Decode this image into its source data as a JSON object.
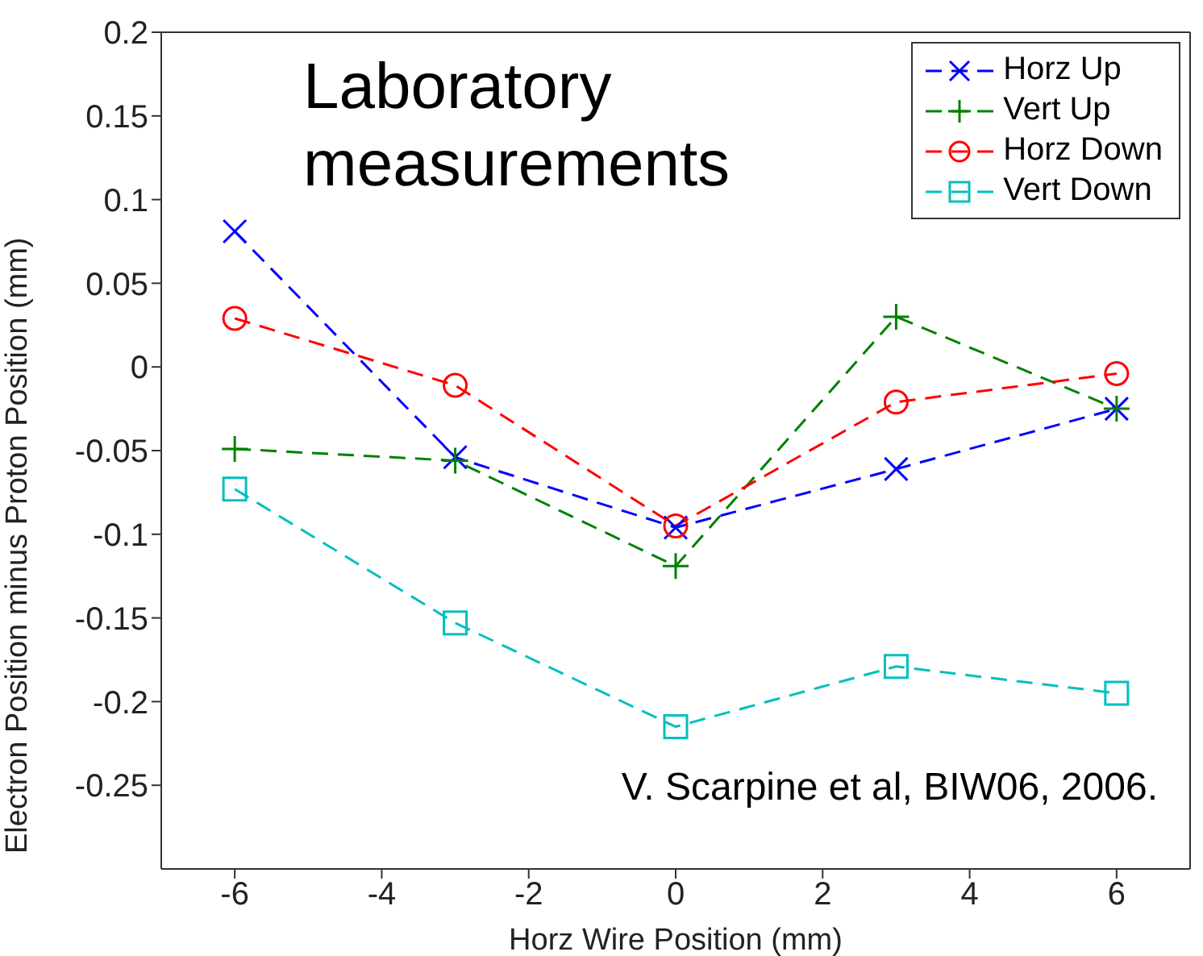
{
  "chart_data": {
    "type": "line",
    "xlabel": "Horz Wire Position (mm)",
    "ylabel": "Electron Position minus Proton Position (mm)",
    "annotations": [
      "Laboratory measurements",
      "V. Scarpine et al, BIW06, 2006."
    ],
    "x": [
      -6,
      -3,
      0,
      3,
      6
    ],
    "series": [
      {
        "name": "Horz Up",
        "color": "#0000ff",
        "marker": "x",
        "values": [
          0.081,
          -0.054,
          -0.096,
          -0.061,
          -0.025
        ]
      },
      {
        "name": "Vert Up",
        "color": "#008000",
        "marker": "cross",
        "values": [
          -0.049,
          -0.056,
          -0.119,
          0.03,
          -0.025
        ]
      },
      {
        "name": "Horz Down",
        "color": "#ff0000",
        "marker": "circle",
        "values": [
          0.029,
          -0.011,
          -0.095,
          -0.021,
          -0.004
        ]
      },
      {
        "name": "Vert Down",
        "color": "#00bfbf",
        "marker": "square",
        "values": [
          -0.073,
          -0.153,
          -0.215,
          -0.179,
          -0.195
        ]
      }
    ],
    "xlim": [
      -7,
      7
    ],
    "xticks": [
      -6,
      -4,
      -2,
      0,
      2,
      4,
      6
    ],
    "ylim": [
      -0.3,
      0.2
    ],
    "yticks": [
      -0.25,
      -0.2,
      -0.15,
      -0.1,
      -0.05,
      0,
      0.05,
      0.1,
      0.15,
      0.2
    ],
    "grid": false,
    "legend": "top right",
    "line_style": "dashed"
  }
}
